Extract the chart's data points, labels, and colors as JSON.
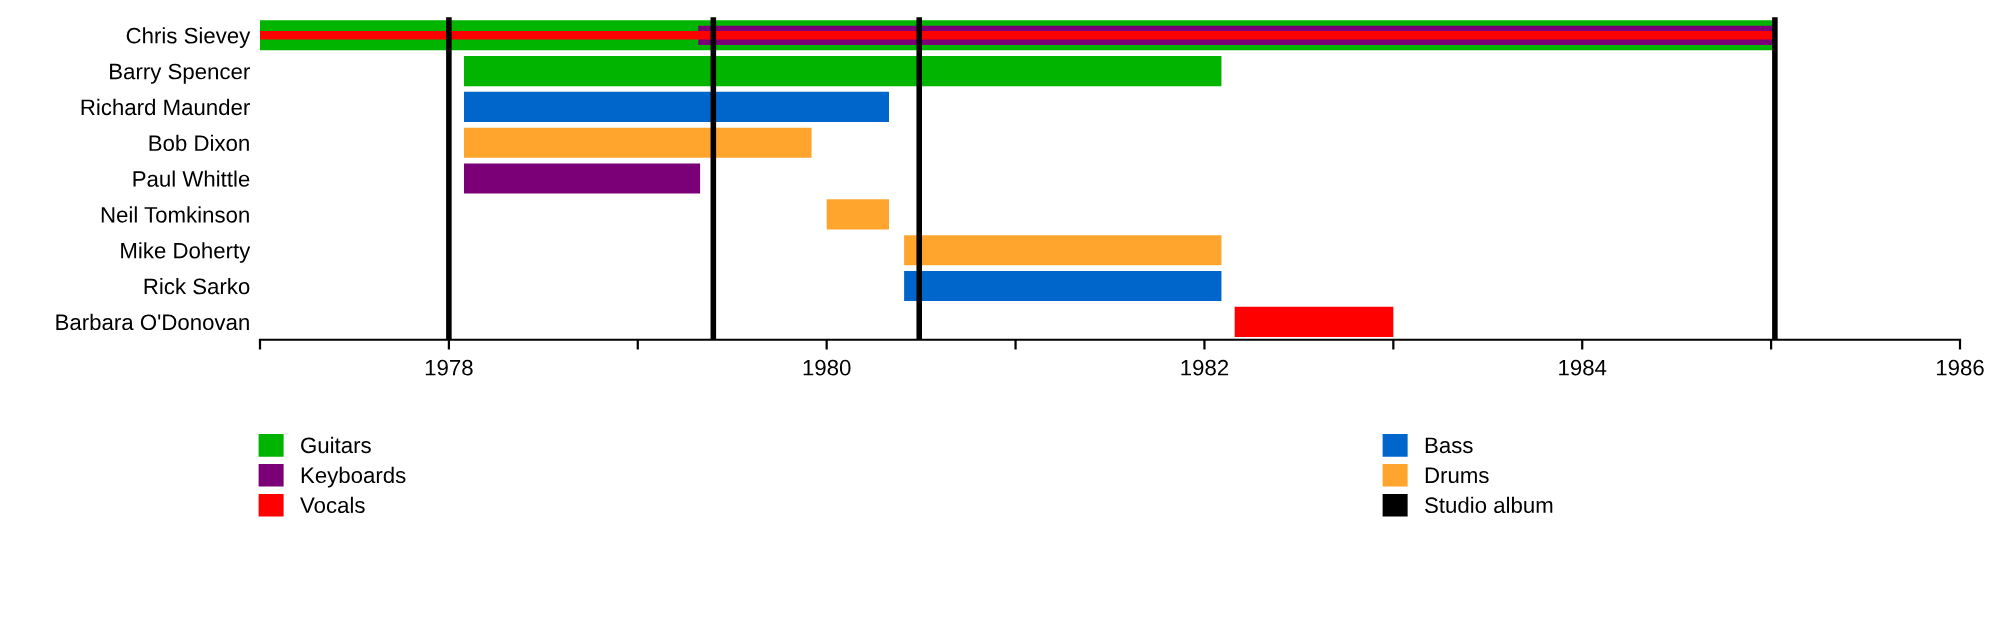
{
  "chart_data": {
    "type": "bar",
    "orientation": "horizontal",
    "categories": [
      "Chris Sievey",
      "Barry Spencer",
      "Richard Maunder",
      "Bob Dixon",
      "Paul Whittle",
      "Neil Tomkinson",
      "Mike Doherty",
      "Rick Sarko",
      "Barbara O'Donovan"
    ],
    "series": [
      {
        "name": "Guitars",
        "color": "#00b400",
        "base": [
          1977,
          1978.08,
          null,
          null,
          null,
          null,
          null,
          null,
          null
        ],
        "values": [
          8.02,
          4.01,
          null,
          null,
          null,
          null,
          null,
          null,
          null
        ]
      },
      {
        "name": "Keyboards",
        "color": "#7b0078",
        "base": [
          1979.32,
          null,
          null,
          null,
          1978.08,
          null,
          null,
          null,
          null
        ],
        "values": [
          5.7,
          null,
          null,
          null,
          1.25,
          null,
          null,
          null,
          null
        ]
      },
      {
        "name": "Vocals",
        "color": "#ff0000",
        "base": [
          1977,
          null,
          null,
          null,
          null,
          null,
          null,
          null,
          1982.16
        ],
        "values": [
          8.02,
          null,
          null,
          null,
          null,
          null,
          null,
          null,
          0.84
        ]
      },
      {
        "name": "Bass",
        "color": "#0066cc",
        "base": [
          null,
          null,
          1978.08,
          null,
          null,
          null,
          null,
          1980.41,
          null
        ],
        "values": [
          null,
          null,
          2.25,
          null,
          null,
          null,
          null,
          1.68,
          null
        ]
      },
      {
        "name": "Drums",
        "color": "#ffa42c",
        "base": [
          null,
          null,
          null,
          1978.08,
          null,
          1980.0,
          1980.41,
          null,
          null
        ],
        "values": [
          null,
          null,
          null,
          1.84,
          null,
          0.33,
          1.68,
          null,
          null
        ]
      }
    ],
    "ref_lines": [
      {
        "axis": "x",
        "value": 1978.0,
        "label": "Studio album",
        "color": "#000000"
      },
      {
        "axis": "x",
        "value": 1979.4,
        "color": "#000000"
      },
      {
        "axis": "x",
        "value": 1980.49,
        "color": "#000000"
      },
      {
        "axis": "x",
        "value": 1985.02,
        "color": "#000000"
      }
    ],
    "xlim": [
      1977,
      1986
    ],
    "xticks": [
      {
        "value": 1977,
        "label": null
      },
      1978,
      {
        "value": 1979,
        "label": null
      },
      1980,
      {
        "value": 1981,
        "label": null
      },
      1982,
      {
        "value": 1983,
        "label": null
      },
      1984,
      {
        "value": 1985,
        "label": null
      },
      1986
    ],
    "legend": "bottom",
    "grid": false
  }
}
